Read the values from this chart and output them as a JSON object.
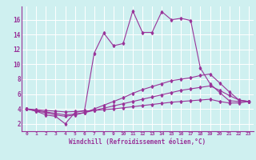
{
  "xlabel": "Windchill (Refroidissement éolien,°C)",
  "background_color": "#cff0f0",
  "grid_color": "#ffffff",
  "line_color": "#993399",
  "x_ticks": [
    0,
    1,
    2,
    3,
    4,
    5,
    6,
    7,
    8,
    9,
    10,
    11,
    12,
    13,
    14,
    15,
    16,
    17,
    18,
    19,
    20,
    21,
    22,
    23
  ],
  "y_ticks": [
    2,
    4,
    6,
    8,
    10,
    12,
    14,
    16
  ],
  "xlim": [
    -0.5,
    23.5
  ],
  "ylim": [
    1.0,
    17.8
  ],
  "series": [
    [
      4.0,
      3.7,
      3.2,
      3.0,
      2.0,
      3.5,
      3.8,
      11.5,
      14.2,
      12.5,
      12.8,
      17.2,
      14.3,
      14.3,
      17.1,
      16.0,
      16.2,
      15.9,
      9.5,
      7.4,
      6.2,
      5.1,
      5.0,
      5.0
    ],
    [
      4.0,
      3.7,
      3.5,
      3.2,
      3.0,
      3.2,
      3.5,
      4.0,
      4.5,
      5.0,
      5.5,
      6.1,
      6.6,
      7.0,
      7.4,
      7.8,
      8.0,
      8.2,
      8.5,
      8.7,
      7.5,
      6.3,
      5.2,
      5.0
    ],
    [
      4.0,
      3.8,
      3.6,
      3.4,
      3.2,
      3.3,
      3.5,
      3.8,
      4.1,
      4.4,
      4.7,
      5.0,
      5.3,
      5.6,
      5.9,
      6.2,
      6.5,
      6.7,
      6.9,
      7.1,
      6.5,
      5.8,
      5.2,
      5.0
    ],
    [
      4.0,
      3.9,
      3.8,
      3.7,
      3.6,
      3.65,
      3.7,
      3.8,
      3.9,
      4.0,
      4.15,
      4.3,
      4.45,
      4.6,
      4.75,
      4.9,
      5.0,
      5.1,
      5.2,
      5.3,
      5.0,
      4.8,
      4.8,
      5.0
    ]
  ]
}
